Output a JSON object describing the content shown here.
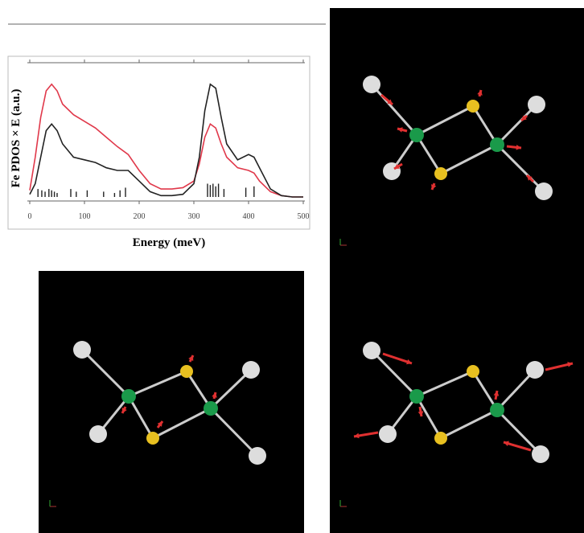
{
  "chart_data": {
    "type": "line",
    "xlabel": "Energy (meV)",
    "ylabel": "Fe PDOS × E (a.u.)",
    "x": [
      0,
      10,
      20,
      30,
      40,
      50,
      60,
      80,
      100,
      120,
      140,
      160,
      180,
      200,
      220,
      240,
      260,
      280,
      300,
      310,
      320,
      330,
      340,
      350,
      360,
      380,
      400,
      410,
      420,
      440,
      460,
      480,
      500
    ],
    "series": [
      {
        "color": "#e0384a",
        "values": [
          0.05,
          0.3,
          0.6,
          0.8,
          0.85,
          0.8,
          0.7,
          0.62,
          0.57,
          0.52,
          0.45,
          0.38,
          0.32,
          0.2,
          0.1,
          0.06,
          0.06,
          0.07,
          0.12,
          0.25,
          0.45,
          0.55,
          0.52,
          0.4,
          0.3,
          0.22,
          0.2,
          0.18,
          0.12,
          0.04,
          0.01,
          0,
          0
        ]
      },
      {
        "color": "#222222",
        "values": [
          0.02,
          0.1,
          0.3,
          0.5,
          0.55,
          0.5,
          0.4,
          0.3,
          0.28,
          0.26,
          0.22,
          0.2,
          0.2,
          0.12,
          0.04,
          0.01,
          0.01,
          0.02,
          0.1,
          0.3,
          0.65,
          0.85,
          0.82,
          0.6,
          0.4,
          0.28,
          0.32,
          0.3,
          0.22,
          0.06,
          0.01,
          0,
          0
        ]
      }
    ],
    "sticks": {
      "color": "#222222",
      "x": [
        15,
        22,
        28,
        35,
        40,
        45,
        50,
        75,
        85,
        105,
        135,
        155,
        165,
        175,
        325,
        330,
        335,
        340,
        345,
        355,
        395,
        410
      ],
      "values": [
        0.06,
        0.05,
        0.04,
        0.06,
        0.05,
        0.04,
        0.03,
        0.06,
        0.04,
        0.05,
        0.04,
        0.03,
        0.05,
        0.07,
        0.1,
        0.09,
        0.1,
        0.08,
        0.1,
        0.06,
        0.07,
        0.08
      ]
    },
    "xlim": [
      0,
      500
    ],
    "xticks": [
      0,
      100,
      200,
      300,
      400,
      500
    ],
    "ylim": [
      0,
      1
    ]
  }
}
